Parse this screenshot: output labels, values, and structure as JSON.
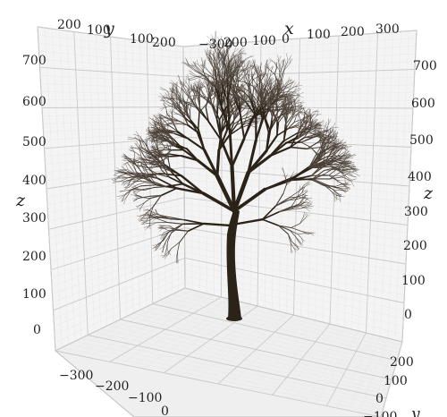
{
  "axes": {
    "x": {
      "label": "x",
      "ticks": [
        "−300",
        "200",
        "100",
        "0",
        "100",
        "200",
        "300"
      ]
    },
    "y_top": {
      "label": "y",
      "ticks": [
        "200",
        "100",
        "100",
        "200"
      ]
    },
    "z_left": {
      "label": "z",
      "ticks": [
        "700",
        "600",
        "500",
        "400",
        "300",
        "200",
        "100",
        "0"
      ]
    },
    "z_right": {
      "label": "z",
      "ticks": [
        "700",
        "600",
        "500",
        "400",
        "300",
        "200",
        "100",
        "0"
      ]
    },
    "floor_x": {
      "ticks": [
        "−300",
        "−200",
        "−100",
        "0"
      ]
    },
    "floor_y": {
      "label": "y",
      "ticks": [
        "200",
        "100",
        "0",
        "−100"
      ]
    }
  },
  "colors": {
    "grid_major": "#c9c9c9",
    "grid_minor": "#e4e4e4",
    "panel_fill": "#f4f4f4",
    "floor_fill": "#efefef",
    "bark": "#2b2218",
    "twig": "#4a4037"
  }
}
